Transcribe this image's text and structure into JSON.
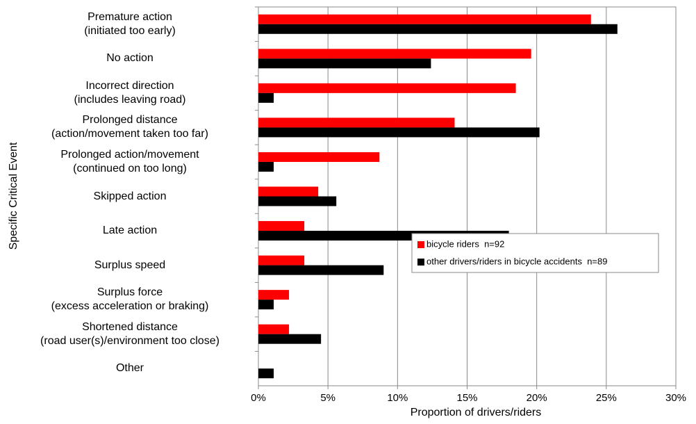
{
  "chart_data": {
    "type": "bar",
    "orientation": "horizontal",
    "x_label": "Proportion of drivers/riders",
    "y_label": "Specific Critical Event",
    "categories": [
      "Premature action\n(initiated too early)",
      "No action",
      "Incorrect direction\n(includes leaving road)",
      "Prolonged distance\n(action/movement taken too far)",
      "Prolonged action/movement\n(continued on too long)",
      "Skipped action",
      "Late action",
      "Surplus speed",
      "Surplus force\n(excess acceleration or braking)",
      "Shortened distance\n(road user(s)/environment too close)",
      "Other"
    ],
    "series": [
      {
        "name": "bicycle riders  n=92",
        "color": "#ff0000",
        "values": [
          23.9,
          19.6,
          18.5,
          14.1,
          8.7,
          4.3,
          3.3,
          3.3,
          2.2,
          2.2,
          0
        ]
      },
      {
        "name": "other drivers/riders in bicycle accidents  n=89",
        "color": "#000000",
        "values": [
          25.8,
          12.4,
          1.1,
          20.2,
          1.1,
          5.6,
          18.0,
          9.0,
          1.1,
          4.5,
          1.1
        ]
      }
    ],
    "xlim": [
      0,
      30
    ],
    "xticks": [
      {
        "value": 0,
        "label": "0%"
      },
      {
        "value": 5,
        "label": "5%"
      },
      {
        "value": 10,
        "label": "10%"
      },
      {
        "value": 15,
        "label": "15%"
      },
      {
        "value": 20,
        "label": "20%"
      },
      {
        "value": 25,
        "label": "25%"
      },
      {
        "value": 30,
        "label": "30%"
      }
    ],
    "grid": true,
    "legend": "lower-right"
  }
}
